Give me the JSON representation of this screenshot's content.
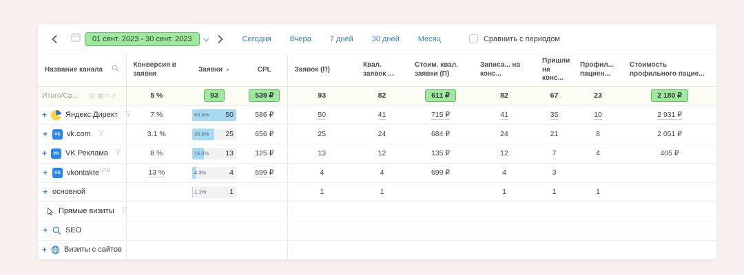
{
  "colors": {
    "green_highlight": "#9fe89f",
    "green_border": "#5fbf5f",
    "link_blue": "#3c80c4",
    "bar_blue": "#a8d9f2",
    "page_bg": "#f8f0ee"
  },
  "toolbar": {
    "date_range": "01 сент. 2023 - 30 сент. 2023",
    "quick_links": [
      "Сегодня",
      "Вчера",
      "7 дней",
      "30 дней",
      "Месяц"
    ],
    "compare_label": "Сравнить с периодом"
  },
  "table": {
    "columns": [
      {
        "label": "Название канала",
        "icon": "search-icon"
      },
      {
        "label": "Конверсия в заявки"
      },
      {
        "label": "Заявки",
        "sort": "desc"
      },
      {
        "label": "CPL"
      },
      {
        "label": "Заявок (П)"
      },
      {
        "label": "Квал. заявок ..."
      },
      {
        "label": "Стоим. квал. заявки (П)"
      },
      {
        "label": "Записа... на конс..."
      },
      {
        "label": "Пришли на конс..."
      },
      {
        "label": "Профил... пациен..."
      },
      {
        "label": "Стоимость профильного пацие..."
      }
    ],
    "totals_row": {
      "name": "Итого/Ср...",
      "icons": [
        "columns-icon",
        "grid-icon",
        "list-icon",
        "trend-icon"
      ],
      "cells": [
        {
          "text": "5 %"
        },
        {
          "text": "93",
          "highlight": true
        },
        {
          "text": "539 ₽",
          "highlight": true
        },
        {
          "text": "93"
        },
        {
          "text": "82"
        },
        {
          "text": "611 ₽",
          "highlight": true
        },
        {
          "text": "82"
        },
        {
          "text": "67"
        },
        {
          "text": "23"
        },
        {
          "text": "2 180 ₽",
          "highlight": true
        }
      ]
    },
    "rows": [
      {
        "name": "Яндекс.Директ",
        "icon": "yandex-direct-icon",
        "expand": true,
        "trail": true,
        "cells": [
          {
            "text": "7 %"
          },
          {
            "text": "50",
            "bar_pct": "53.8%",
            "bar_fill": 100
          },
          {
            "text": "586 ₽"
          },
          {
            "text": "50",
            "link": true
          },
          {
            "text": "41",
            "link": true
          },
          {
            "text": "715 ₽",
            "link": true
          },
          {
            "text": "41",
            "link": true
          },
          {
            "text": "35",
            "link": true
          },
          {
            "text": "10",
            "link": true
          },
          {
            "text": "2 931 ₽",
            "link": true
          }
        ]
      },
      {
        "name": "vk.com",
        "icon": "vk-icon",
        "expand": true,
        "trail": true,
        "cells": [
          {
            "text": "3.1 %"
          },
          {
            "text": "25",
            "bar_pct": "26.9%",
            "bar_fill": 50
          },
          {
            "text": "656 ₽"
          },
          {
            "text": "25"
          },
          {
            "text": "24"
          },
          {
            "text": "684 ₽"
          },
          {
            "text": "24"
          },
          {
            "text": "21"
          },
          {
            "text": "8"
          },
          {
            "text": "2 051 ₽"
          }
        ]
      },
      {
        "name": "VK Реклама",
        "icon": "vk-icon",
        "expand": true,
        "trail": true,
        "cells": [
          {
            "text": "8 %"
          },
          {
            "text": "13",
            "bar_pct": "14.0%",
            "bar_fill": 26
          },
          {
            "text": "125 ₽"
          },
          {
            "text": "13"
          },
          {
            "text": "12"
          },
          {
            "text": "135 ₽"
          },
          {
            "text": "12"
          },
          {
            "text": "7"
          },
          {
            "text": "4"
          },
          {
            "text": "405 ₽"
          }
        ]
      },
      {
        "name": "vkontakte",
        "suffix": "UTM",
        "icon": "vk-icon",
        "expand": true,
        "cells": [
          {
            "text": "13 %",
            "link": true
          },
          {
            "text": "4",
            "bar_pct": "4.3%",
            "bar_fill": 8
          },
          {
            "text": "699 ₽",
            "link": true
          },
          {
            "text": "4"
          },
          {
            "text": "4"
          },
          {
            "text": "699 ₽"
          },
          {
            "text": "4"
          },
          {
            "text": "3"
          },
          {
            "text": ""
          },
          {
            "text": ""
          }
        ]
      },
      {
        "name": "основной",
        "icon": null,
        "expand": true,
        "cells": [
          {
            "text": ""
          },
          {
            "text": "1",
            "bar_pct": "1.1%",
            "bar_fill": 2
          },
          {
            "text": ""
          },
          {
            "text": "1"
          },
          {
            "text": "1"
          },
          {
            "text": ""
          },
          {
            "text": "1"
          },
          {
            "text": "1"
          },
          {
            "text": "1"
          },
          {
            "text": ""
          }
        ]
      },
      {
        "name": "Прямые визиты",
        "icon": "cursor-icon",
        "expand": false,
        "trail": true,
        "cells": [
          {
            "text": ""
          },
          {
            "text": ""
          },
          {
            "text": ""
          },
          {
            "text": ""
          },
          {
            "text": ""
          },
          {
            "text": ""
          },
          {
            "text": ""
          },
          {
            "text": ""
          },
          {
            "text": ""
          },
          {
            "text": ""
          }
        ]
      },
      {
        "name": "SEO",
        "icon": "search-channel-icon",
        "expand": true,
        "cells": [
          {
            "text": ""
          },
          {
            "text": ""
          },
          {
            "text": ""
          },
          {
            "text": ""
          },
          {
            "text": ""
          },
          {
            "text": ""
          },
          {
            "text": ""
          },
          {
            "text": ""
          },
          {
            "text": ""
          },
          {
            "text": ""
          }
        ]
      },
      {
        "name": "Визиты с сайтов",
        "icon": "globe-icon",
        "expand": true,
        "cells": [
          {
            "text": ""
          },
          {
            "text": ""
          },
          {
            "text": ""
          },
          {
            "text": ""
          },
          {
            "text": ""
          },
          {
            "text": ""
          },
          {
            "text": ""
          },
          {
            "text": ""
          },
          {
            "text": ""
          },
          {
            "text": ""
          }
        ]
      }
    ]
  }
}
